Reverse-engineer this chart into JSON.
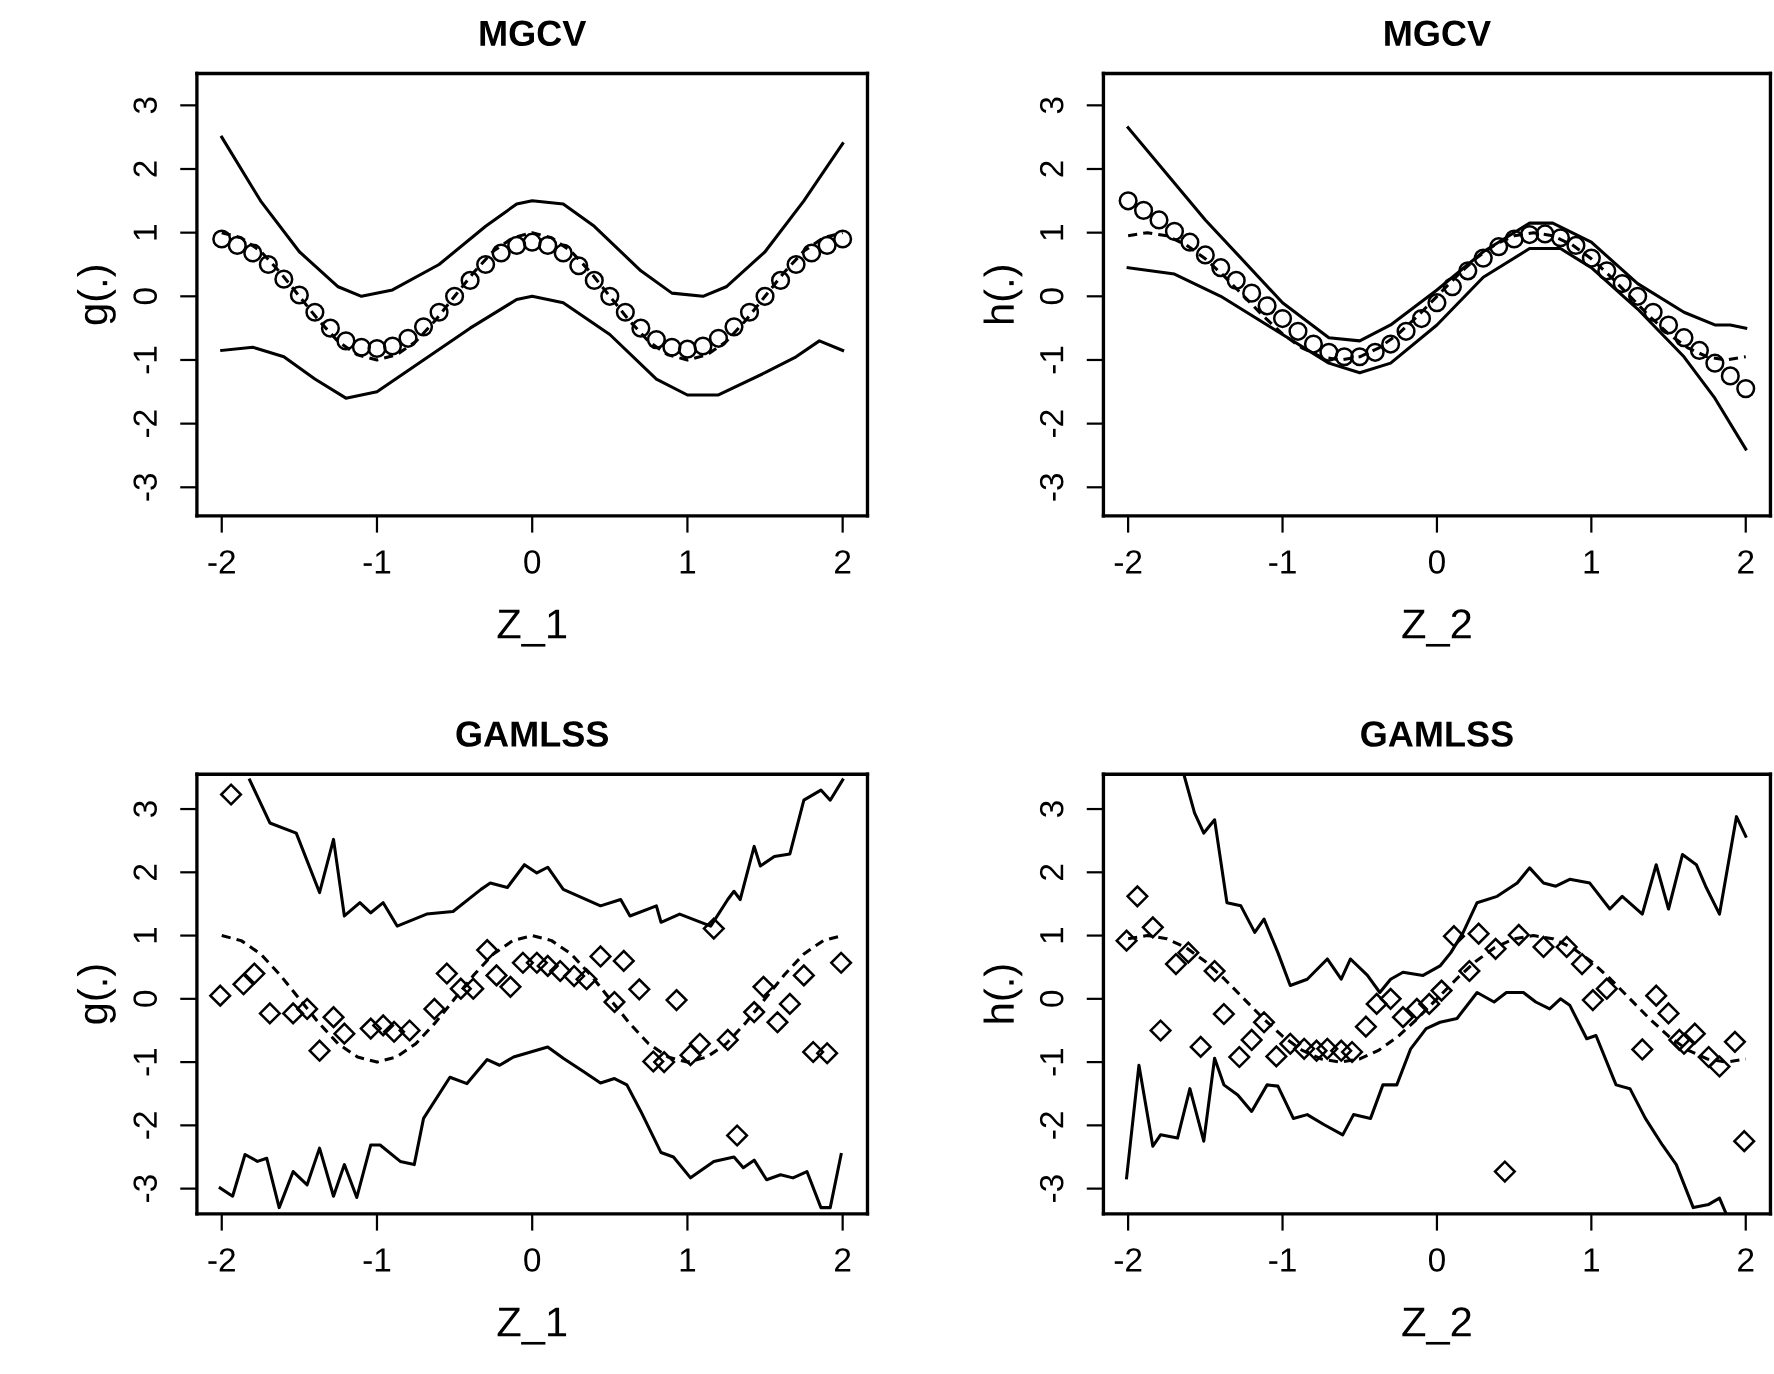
{
  "chart_data": [
    {
      "type": "line",
      "title": "MGCV",
      "xlabel": "Z_1",
      "ylabel": "g(.)",
      "xlim": [
        -2.16,
        2.16
      ],
      "ylim": [
        -3.45,
        3.5
      ],
      "xticks": [
        -2,
        -1,
        0,
        1,
        2
      ],
      "yticks": [
        -3,
        -2,
        -1,
        0,
        1,
        2,
        3
      ],
      "series": [
        {
          "type": "line",
          "line_style": "dashed",
          "color": "#000000",
          "x": [
            -2,
            -1.875,
            -1.75,
            -1.625,
            -1.5,
            -1.375,
            -1.25,
            -1.125,
            -1,
            -0.875,
            -0.75,
            -0.625,
            -0.5,
            -0.375,
            -0.25,
            -0.125,
            0,
            0.125,
            0.25,
            0.375,
            0.5,
            0.625,
            0.75,
            0.875,
            1,
            1.125,
            1.25,
            1.375,
            1.5,
            1.625,
            1.75,
            1.875,
            2
          ],
          "values": [
            1,
            0.92,
            0.71,
            0.38,
            0,
            -0.38,
            -0.71,
            -0.92,
            -1,
            -0.92,
            -0.71,
            -0.38,
            0,
            0.38,
            0.71,
            0.92,
            1,
            0.92,
            0.71,
            0.38,
            0,
            -0.38,
            -0.71,
            -0.92,
            -1,
            -0.92,
            -0.71,
            -0.38,
            0,
            0.38,
            0.71,
            0.92,
            1
          ]
        },
        {
          "type": "scatter",
          "marker": "circle",
          "color": "#000000",
          "x": [
            -2,
            -1.9,
            -1.8,
            -1.7,
            -1.6,
            -1.5,
            -1.4,
            -1.3,
            -1.2,
            -1.1,
            -1,
            -0.9,
            -0.8,
            -0.7,
            -0.6,
            -0.5,
            -0.4,
            -0.3,
            -0.2,
            -0.1,
            0,
            0.1,
            0.2,
            0.3,
            0.4,
            0.5,
            0.6,
            0.7,
            0.8,
            0.9,
            1,
            1.1,
            1.2,
            1.3,
            1.4,
            1.5,
            1.6,
            1.7,
            1.8,
            1.9,
            2
          ],
          "values": [
            0.9,
            0.8,
            0.68,
            0.5,
            0.27,
            0.02,
            -0.25,
            -0.5,
            -0.7,
            -0.8,
            -0.82,
            -0.78,
            -0.66,
            -0.48,
            -0.25,
            0,
            0.25,
            0.5,
            0.68,
            0.8,
            0.85,
            0.8,
            0.68,
            0.48,
            0.25,
            0,
            -0.25,
            -0.5,
            -0.68,
            -0.8,
            -0.83,
            -0.78,
            -0.66,
            -0.48,
            -0.25,
            0,
            0.25,
            0.5,
            0.68,
            0.8,
            0.9
          ]
        },
        {
          "type": "line",
          "line_style": "solid",
          "color": "#000000",
          "x": [
            -2,
            -1.75,
            -1.5,
            -1.25,
            -1.1,
            -0.9,
            -0.6,
            -0.3,
            -0.1,
            0,
            0.2,
            0.4,
            0.7,
            0.9,
            1.1,
            1.25,
            1.5,
            1.75,
            2
          ],
          "values": [
            2.5,
            1.5,
            0.7,
            0.15,
            0,
            0.1,
            0.5,
            1.1,
            1.45,
            1.5,
            1.45,
            1.1,
            0.4,
            0.05,
            0,
            0.15,
            0.7,
            1.5,
            2.4
          ]
        },
        {
          "type": "line",
          "line_style": "solid",
          "color": "#000000",
          "x": [
            -2,
            -1.8,
            -1.6,
            -1.4,
            -1.2,
            -1,
            -0.7,
            -0.4,
            -0.1,
            0,
            0.2,
            0.5,
            0.8,
            1,
            1.2,
            1.5,
            1.7,
            1.85,
            2
          ],
          "values": [
            -0.85,
            -0.8,
            -0.95,
            -1.3,
            -1.6,
            -1.5,
            -1,
            -0.5,
            -0.05,
            0,
            -0.1,
            -0.6,
            -1.3,
            -1.55,
            -1.55,
            -1.2,
            -0.95,
            -0.7,
            -0.85
          ]
        }
      ]
    },
    {
      "type": "line",
      "title": "MGCV",
      "xlabel": "Z_2",
      "ylabel": "h(.)",
      "xlim": [
        -2.16,
        2.16
      ],
      "ylim": [
        -3.45,
        3.5
      ],
      "xticks": [
        -2,
        -1,
        0,
        1,
        2
      ],
      "yticks": [
        -3,
        -2,
        -1,
        0,
        1,
        2,
        3
      ],
      "series": [
        {
          "type": "line",
          "line_style": "dashed",
          "color": "#000000",
          "x": [
            -2,
            -1.875,
            -1.75,
            -1.625,
            -1.5,
            -1.375,
            -1.25,
            -1.125,
            -1,
            -0.875,
            -0.75,
            -0.625,
            -0.5,
            -0.375,
            -0.25,
            -0.125,
            0,
            0.125,
            0.25,
            0.375,
            0.5,
            0.625,
            0.75,
            0.875,
            1,
            1.125,
            1.25,
            1.375,
            1.5,
            1.625,
            1.75,
            1.875,
            2
          ],
          "values": [
            0.95,
            1,
            0.95,
            0.81,
            0.59,
            0.31,
            0,
            -0.31,
            -0.59,
            -0.81,
            -0.95,
            -1,
            -0.95,
            -0.81,
            -0.59,
            -0.31,
            0,
            0.31,
            0.59,
            0.81,
            0.95,
            1,
            0.95,
            0.81,
            0.59,
            0.31,
            0,
            -0.31,
            -0.59,
            -0.81,
            -0.95,
            -1,
            -0.95
          ]
        },
        {
          "type": "scatter",
          "marker": "circle",
          "color": "#000000",
          "x": [
            -2,
            -1.9,
            -1.8,
            -1.7,
            -1.6,
            -1.5,
            -1.4,
            -1.3,
            -1.2,
            -1.1,
            -1,
            -0.9,
            -0.8,
            -0.7,
            -0.6,
            -0.5,
            -0.4,
            -0.3,
            -0.2,
            -0.1,
            0,
            0.1,
            0.2,
            0.3,
            0.4,
            0.5,
            0.6,
            0.7,
            0.8,
            0.9,
            1,
            1.1,
            1.2,
            1.3,
            1.4,
            1.5,
            1.6,
            1.7,
            1.8,
            1.9,
            2
          ],
          "values": [
            1.5,
            1.35,
            1.2,
            1.02,
            0.85,
            0.65,
            0.45,
            0.25,
            0.05,
            -0.15,
            -0.35,
            -0.55,
            -0.75,
            -0.88,
            -0.95,
            -0.95,
            -0.88,
            -0.75,
            -0.55,
            -0.35,
            -0.1,
            0.15,
            0.4,
            0.6,
            0.78,
            0.9,
            0.97,
            0.98,
            0.92,
            0.8,
            0.6,
            0.4,
            0.2,
            0,
            -0.25,
            -0.45,
            -0.65,
            -0.85,
            -1.05,
            -1.25,
            -1.45
          ]
        },
        {
          "type": "line",
          "line_style": "solid",
          "color": "#000000",
          "x": [
            -2,
            -1.5,
            -1,
            -0.7,
            -0.5,
            -0.3,
            0,
            0.3,
            0.6,
            0.75,
            1,
            1.3,
            1.6,
            1.8,
            1.9,
            2
          ],
          "values": [
            2.65,
            1.2,
            -0.1,
            -0.65,
            -0.7,
            -0.45,
            0.1,
            0.7,
            1.15,
            1.15,
            0.85,
            0.2,
            -0.25,
            -0.45,
            -0.45,
            -0.5
          ]
        },
        {
          "type": "line",
          "line_style": "solid",
          "color": "#000000",
          "x": [
            -2,
            -1.7,
            -1.4,
            -1,
            -0.7,
            -0.5,
            -0.3,
            0,
            0.3,
            0.6,
            0.8,
            1,
            1.3,
            1.6,
            1.8,
            2
          ],
          "values": [
            0.45,
            0.35,
            0,
            -0.6,
            -1.05,
            -1.2,
            -1.05,
            -0.45,
            0.3,
            0.75,
            0.75,
            0.45,
            -0.2,
            -0.95,
            -1.6,
            -2.4
          ]
        }
      ]
    },
    {
      "type": "line",
      "title": "GAMLSS",
      "xlabel": "Z_1",
      "ylabel": "g(.)",
      "xlim": [
        -2.16,
        2.16
      ],
      "ylim": [
        -3.4,
        3.55
      ],
      "xticks": [
        -2,
        -1,
        0,
        1,
        2
      ],
      "yticks": [
        -3,
        -2,
        -1,
        0,
        1,
        2,
        3
      ],
      "series": [
        {
          "type": "line",
          "line_style": "dashed",
          "color": "#000000",
          "x": [
            -2,
            -1.875,
            -1.75,
            -1.625,
            -1.5,
            -1.375,
            -1.25,
            -1.125,
            -1,
            -0.875,
            -0.75,
            -0.625,
            -0.5,
            -0.375,
            -0.25,
            -0.125,
            0,
            0.125,
            0.25,
            0.375,
            0.5,
            0.625,
            0.75,
            0.875,
            1,
            1.125,
            1.25,
            1.375,
            1.5,
            1.625,
            1.75,
            1.875,
            2
          ],
          "values": [
            1,
            0.92,
            0.71,
            0.38,
            0,
            -0.38,
            -0.71,
            -0.92,
            -1,
            -0.92,
            -0.71,
            -0.38,
            0,
            0.38,
            0.71,
            0.92,
            1,
            0.92,
            0.71,
            0.38,
            0,
            -0.38,
            -0.71,
            -0.92,
            -1,
            -0.92,
            -0.71,
            -0.38,
            0,
            0.38,
            0.71,
            0.92,
            1
          ]
        },
        {
          "type": "scatter",
          "marker": "diamond",
          "color": "#000000",
          "x": [
            -1.94,
            -2.01,
            -1.86,
            -1.79,
            -1.69,
            -1.54,
            -1.45,
            -1.37,
            -1.28,
            -1.21,
            -1.04,
            -0.96,
            -0.89,
            -0.79,
            -0.63,
            -0.55,
            -0.46,
            -0.38,
            -0.29,
            -0.23,
            -0.14,
            -0.06,
            0.03,
            0.1,
            0.18,
            0.27,
            0.35,
            0.44,
            0.53,
            0.59,
            0.69,
            0.78,
            0.85,
            0.93,
            1.02,
            1.08,
            1.17,
            1.26,
            1.32,
            1.43,
            1.49,
            1.58,
            1.66,
            1.75,
            1.81,
            1.9,
            1.99
          ],
          "values": [
            3.23,
            0.05,
            0.23,
            0.4,
            -0.23,
            -0.23,
            -0.16,
            -0.82,
            -0.29,
            -0.55,
            -0.47,
            -0.42,
            -0.52,
            -0.5,
            -0.16,
            0.4,
            0.16,
            0.16,
            0.77,
            0.37,
            0.19,
            0.57,
            0.57,
            0.52,
            0.44,
            0.36,
            0.31,
            0.67,
            -0.05,
            0.6,
            0.15,
            -0.99,
            -1,
            -0.02,
            -0.89,
            -0.71,
            1.11,
            -0.65,
            -2.16,
            -0.21,
            0.19,
            -0.37,
            -0.08,
            0.37,
            -0.84,
            -0.86,
            0.57
          ]
        },
        {
          "type": "line",
          "line_style": "solid",
          "color": "#000000",
          "x": [
            -1.82,
            -1.69,
            -1.52,
            -1.37,
            -1.28,
            -1.21,
            -1.11,
            -1.04,
            -0.96,
            -0.87,
            -0.68,
            -0.51,
            -0.33,
            -0.27,
            -0.16,
            -0.05,
            0.03,
            0.1,
            0.2,
            0.44,
            0.57,
            0.63,
            0.8,
            0.83,
            0.95,
            1.15,
            1.26,
            1.3,
            1.34,
            1.43,
            1.47,
            1.56,
            1.66,
            1.75,
            1.86,
            1.92,
            2
          ],
          "values": [
            3.46,
            2.78,
            2.62,
            1.68,
            2.52,
            1.31,
            1.52,
            1.36,
            1.52,
            1.15,
            1.34,
            1.38,
            1.73,
            1.83,
            1.76,
            2.12,
            1.99,
            2.08,
            1.73,
            1.47,
            1.57,
            1.31,
            1.47,
            1.21,
            1.34,
            1.15,
            1.57,
            1.7,
            1.57,
            2.41,
            2.1,
            2.25,
            2.29,
            3.14,
            3.3,
            3.14,
            3.46
          ]
        },
        {
          "type": "line",
          "line_style": "solid",
          "color": "#000000",
          "x": [
            -2.01,
            -1.93,
            -1.85,
            -1.77,
            -1.71,
            -1.63,
            -1.54,
            -1.45,
            -1.37,
            -1.28,
            -1.21,
            -1.13,
            -1.04,
            -0.98,
            -0.85,
            -0.76,
            -0.7,
            -0.53,
            -0.42,
            -0.29,
            -0.21,
            -0.12,
            -0.01,
            0.1,
            0.2,
            0.33,
            0.44,
            0.53,
            0.61,
            0.7,
            0.83,
            0.91,
            1.02,
            1.17,
            1.3,
            1.36,
            1.43,
            1.51,
            1.6,
            1.68,
            1.77,
            1.86,
            1.92,
            1.99
          ],
          "values": [
            -2.99,
            -3.12,
            -2.46,
            -2.57,
            -2.52,
            -3.3,
            -2.73,
            -2.94,
            -2.36,
            -3.12,
            -2.62,
            -3.14,
            -2.31,
            -2.31,
            -2.57,
            -2.62,
            -1.89,
            -1.24,
            -1.34,
            -0.96,
            -1.05,
            -0.92,
            -0.84,
            -0.76,
            -0.94,
            -1.15,
            -1.33,
            -1.26,
            -1.36,
            -1.78,
            -2.43,
            -2.5,
            -2.83,
            -2.57,
            -2.5,
            -2.67,
            -2.55,
            -2.86,
            -2.78,
            -2.83,
            -2.73,
            -3.3,
            -3.3,
            -2.46
          ]
        }
      ]
    },
    {
      "type": "line",
      "title": "GAMLSS",
      "xlabel": "Z_2",
      "ylabel": "h(.)",
      "xlim": [
        -2.16,
        2.16
      ],
      "ylim": [
        -3.4,
        3.55
      ],
      "xticks": [
        -2,
        -1,
        0,
        1,
        2
      ],
      "yticks": [
        -3,
        -2,
        -1,
        0,
        1,
        2,
        3
      ],
      "series": [
        {
          "type": "line",
          "line_style": "dashed",
          "color": "#000000",
          "x": [
            -2,
            -1.875,
            -1.75,
            -1.625,
            -1.5,
            -1.375,
            -1.25,
            -1.125,
            -1,
            -0.875,
            -0.75,
            -0.625,
            -0.5,
            -0.375,
            -0.25,
            -0.125,
            0,
            0.125,
            0.25,
            0.375,
            0.5,
            0.625,
            0.75,
            0.875,
            1,
            1.125,
            1.25,
            1.375,
            1.5,
            1.625,
            1.75,
            1.875,
            2
          ],
          "values": [
            0.95,
            1,
            0.95,
            0.81,
            0.59,
            0.31,
            0,
            -0.31,
            -0.59,
            -0.81,
            -0.95,
            -1,
            -0.95,
            -0.81,
            -0.59,
            -0.31,
            0,
            0.31,
            0.59,
            0.81,
            0.95,
            1,
            0.95,
            0.81,
            0.59,
            0.31,
            0,
            -0.31,
            -0.59,
            -0.81,
            -0.95,
            -1,
            -0.95
          ]
        },
        {
          "type": "scatter",
          "marker": "diamond",
          "color": "#000000",
          "x": [
            -1.94,
            -2.01,
            -1.84,
            -1.79,
            -1.69,
            -1.61,
            -1.53,
            -1.44,
            -1.38,
            -1.28,
            -1.2,
            -1.12,
            -1.04,
            -0.95,
            -0.86,
            -0.78,
            -0.71,
            -0.62,
            -0.55,
            -0.46,
            -0.39,
            -0.3,
            -0.22,
            -0.13,
            -0.05,
            0.03,
            0.11,
            0.21,
            0.27,
            0.38,
            0.44,
            0.53,
            0.69,
            0.84,
            0.94,
            1.01,
            1.1,
            1.33,
            1.42,
            1.5,
            1.57,
            1.6,
            1.67,
            1.76,
            1.83,
            1.93,
            1.99
          ],
          "values": [
            1.62,
            0.92,
            1.13,
            -0.5,
            0.55,
            0.73,
            -0.76,
            0.44,
            -0.24,
            -0.92,
            -0.65,
            -0.37,
            -0.91,
            -0.71,
            -0.79,
            -0.82,
            -0.79,
            -0.82,
            -0.84,
            -0.44,
            -0.08,
            0,
            -0.29,
            -0.16,
            -0.08,
            0.13,
            0.99,
            0.44,
            1.03,
            0.79,
            -2.73,
            1.01,
            0.82,
            0.82,
            0.55,
            -0.02,
            0.16,
            -0.8,
            0.05,
            -0.23,
            -0.65,
            -0.71,
            -0.55,
            -0.92,
            -1.07,
            -0.68,
            -2.25
          ]
        },
        {
          "type": "line",
          "line_style": "solid",
          "color": "#000000",
          "x": [
            -1.635,
            -1.57,
            -1.51,
            -1.44,
            -1.36,
            -1.27,
            -1.18,
            -1.12,
            -1.03,
            -0.95,
            -0.84,
            -0.71,
            -0.62,
            -0.56,
            -0.45,
            -0.37,
            -0.3,
            -0.22,
            -0.09,
            0.02,
            0.09,
            0.17,
            0.26,
            0.39,
            0.52,
            0.6,
            0.69,
            0.77,
            0.86,
            0.99,
            1.12,
            1.2,
            1.33,
            1.42,
            1.5,
            1.59,
            1.68,
            1.74,
            1.83,
            1.94,
            2
          ],
          "values": [
            3.51,
            2.94,
            2.62,
            2.83,
            1.52,
            1.47,
            1.05,
            1.26,
            0.73,
            0.21,
            0.31,
            0.63,
            0.31,
            0.63,
            0.37,
            0.1,
            0.31,
            0.42,
            0.37,
            0.52,
            0.73,
            1.05,
            1.52,
            1.62,
            1.83,
            2.07,
            1.83,
            1.78,
            1.89,
            1.83,
            1.42,
            1.62,
            1.34,
            2.12,
            1.42,
            2.28,
            2.12,
            1.78,
            1.34,
            2.88,
            2.57
          ]
        },
        {
          "type": "line",
          "line_style": "solid",
          "color": "#000000",
          "x": [
            -2.01,
            -1.93,
            -1.84,
            -1.79,
            -1.68,
            -1.6,
            -1.51,
            -1.44,
            -1.38,
            -1.29,
            -1.2,
            -1.1,
            -1.03,
            -0.93,
            -0.84,
            -0.73,
            -0.61,
            -0.54,
            -0.43,
            -0.35,
            -0.26,
            -0.17,
            -0.07,
            0.02,
            0.13,
            0.26,
            0.37,
            0.45,
            0.56,
            0.64,
            0.73,
            0.8,
            0.86,
            0.97,
            1.03,
            1.16,
            1.25,
            1.35,
            1.46,
            1.55,
            1.66,
            1.76,
            1.83,
            1.87
          ],
          "values": [
            -2.83,
            -1.05,
            -2.33,
            -2.15,
            -2.2,
            -1.42,
            -2.25,
            -0.94,
            -1.36,
            -1.52,
            -1.78,
            -1.36,
            -1.38,
            -1.89,
            -1.83,
            -1.99,
            -2.15,
            -1.83,
            -1.89,
            -1.36,
            -1.36,
            -0.79,
            -0.47,
            -0.37,
            -0.31,
            0.1,
            -0.05,
            0.1,
            0.1,
            -0.05,
            -0.16,
            0,
            -0.1,
            -0.63,
            -0.58,
            -1.36,
            -1.42,
            -1.89,
            -2.31,
            -2.62,
            -3.3,
            -3.25,
            -3.15,
            -3.38
          ]
        }
      ]
    }
  ]
}
